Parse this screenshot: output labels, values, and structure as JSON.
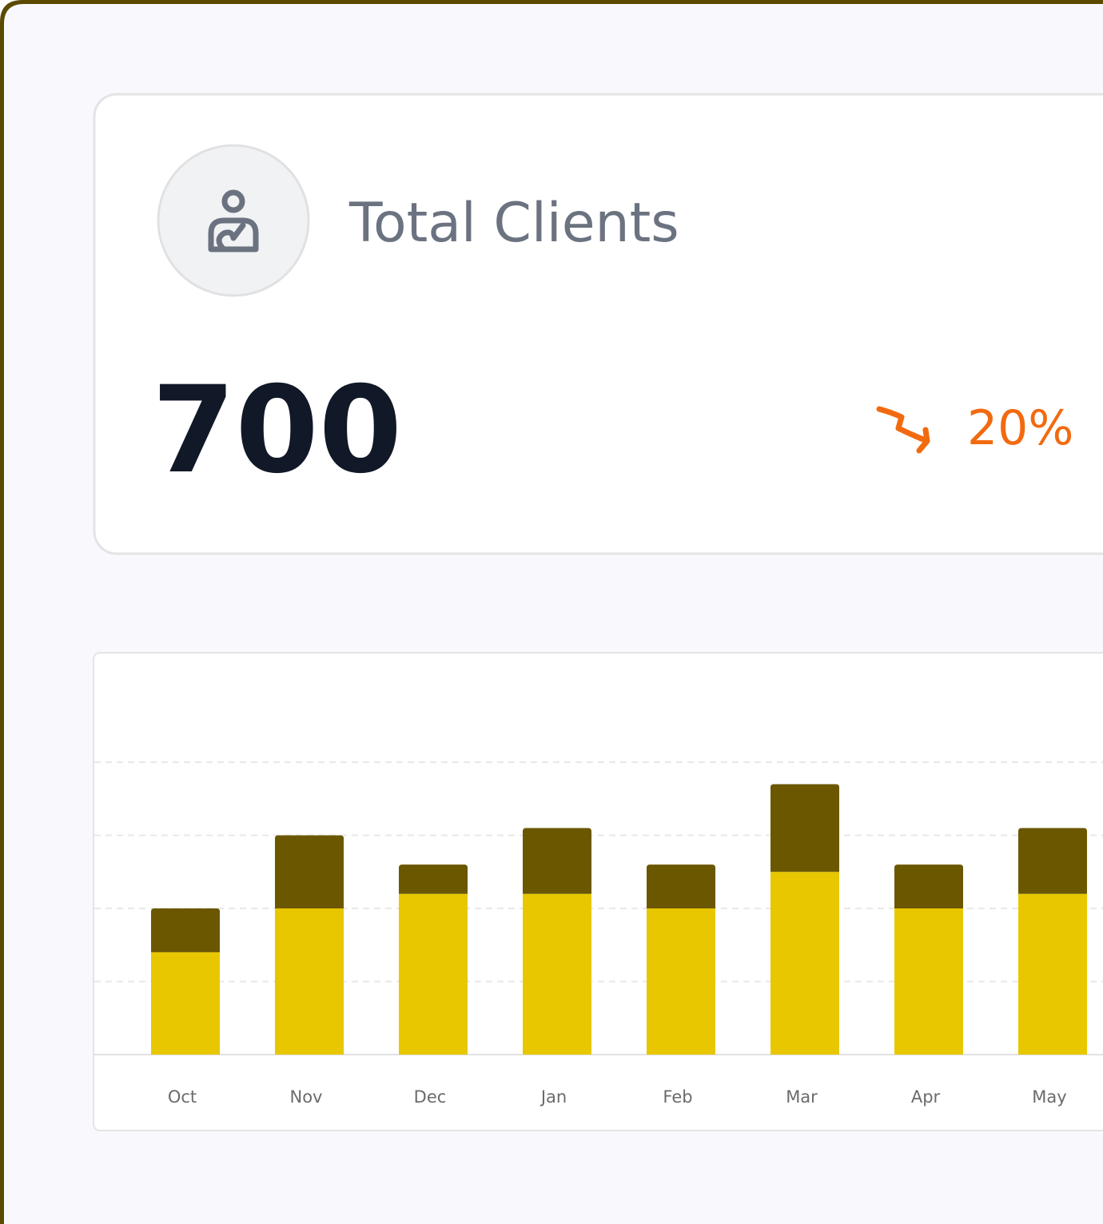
{
  "card": {
    "title": "Total Clients",
    "value": "700",
    "change": "20%"
  },
  "chart_data": {
    "type": "stacked-bar",
    "categories": [
      "Oct",
      "Nov",
      "Dec",
      "Jan",
      "Feb",
      "Mar",
      "Apr",
      "May"
    ],
    "series": [
      {
        "color": "#e8c700",
        "values": [
          14,
          20,
          22,
          22,
          20,
          25,
          20,
          22
        ]
      },
      {
        "color": "#6b5700",
        "values": [
          6,
          10,
          4,
          9,
          6,
          12,
          6,
          9
        ]
      }
    ],
    "ylim": [
      0,
      40
    ],
    "yticks": [
      0,
      10,
      20,
      30,
      40
    ],
    "grid": true
  }
}
